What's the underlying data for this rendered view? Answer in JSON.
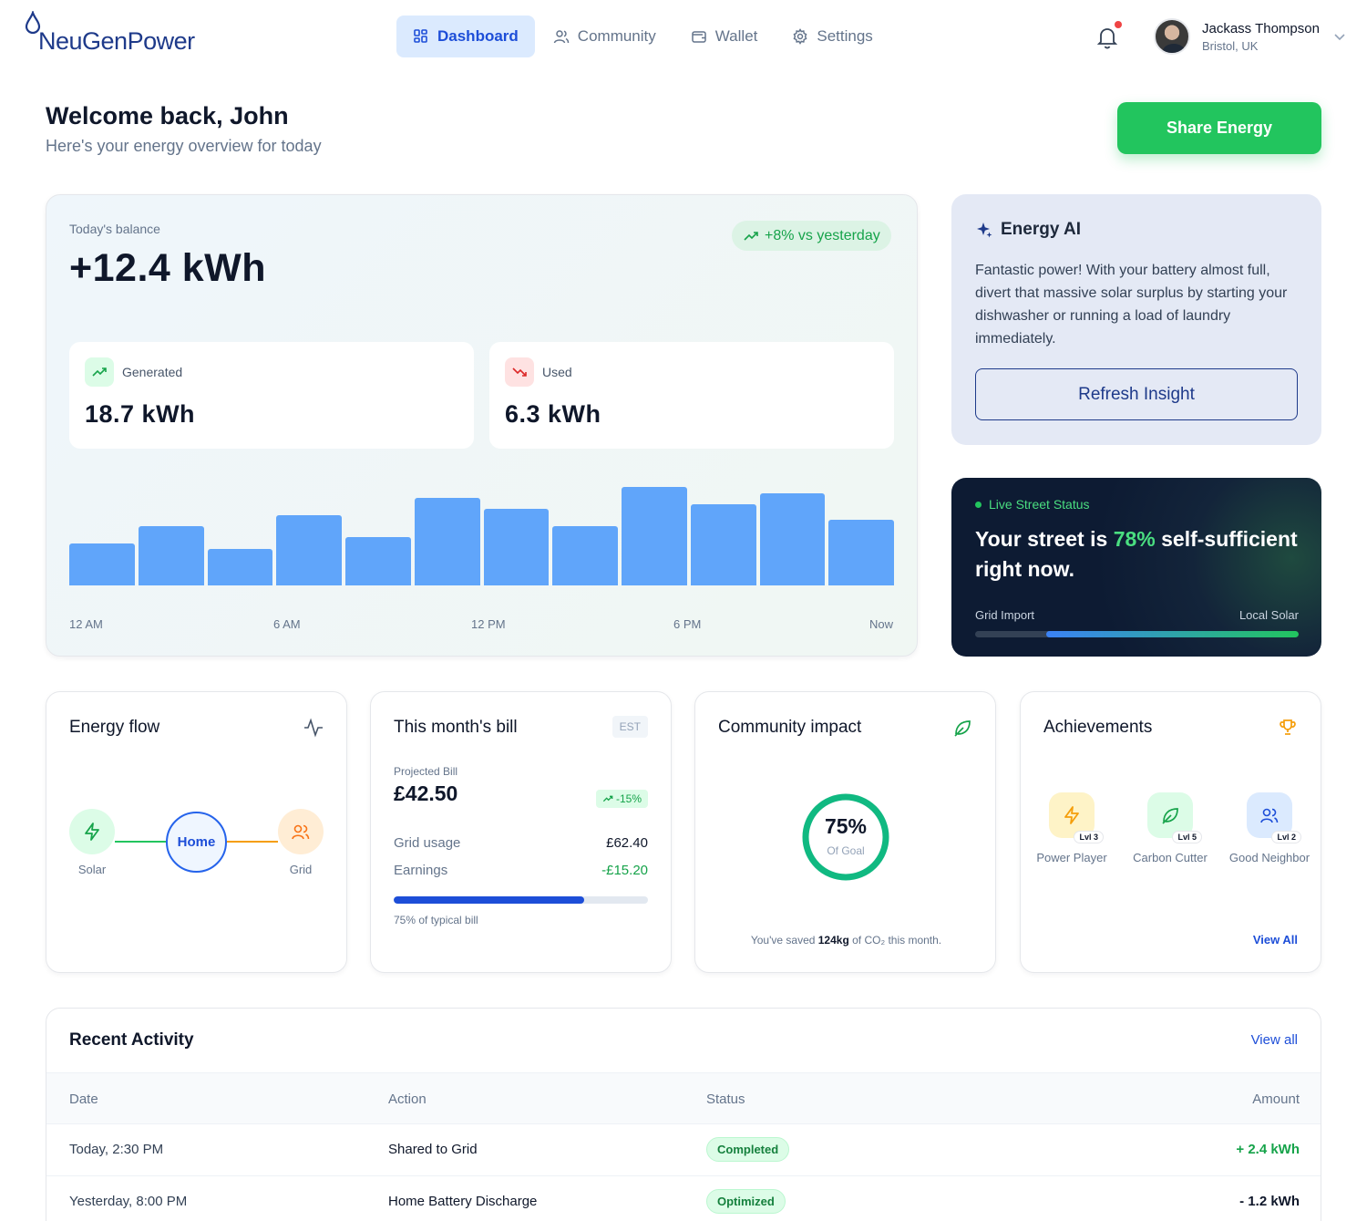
{
  "brand": {
    "name": "NeuGenPower"
  },
  "nav": {
    "items": [
      {
        "label": "Dashboard",
        "icon": "grid-icon",
        "active": true
      },
      {
        "label": "Community",
        "icon": "users-icon",
        "active": false
      },
      {
        "label": "Wallet",
        "icon": "wallet-icon",
        "active": false
      },
      {
        "label": "Settings",
        "icon": "gear-icon",
        "active": false
      }
    ]
  },
  "user": {
    "name": "Jackass Thompson",
    "location": "Bristol, UK",
    "has_notifications": true
  },
  "welcome": {
    "title": "Welcome back, John",
    "subtitle": "Here's your energy overview for today",
    "share_button": "Share Energy"
  },
  "balance": {
    "label": "Today's balance",
    "value": "+12.4 kWh",
    "trend": "+8% vs yesterday",
    "generated_label": "Generated",
    "generated_value": "18.7 kWh",
    "used_label": "Used",
    "used_value": "6.3 kWh"
  },
  "chart_data": {
    "type": "bar",
    "values": [
      0.42,
      0.6,
      0.37,
      0.71,
      0.49,
      0.88,
      0.77,
      0.6,
      0.99,
      0.82,
      0.93,
      0.66
    ],
    "x_tick_labels": [
      "12 AM",
      "6 AM",
      "12 PM",
      "6 PM",
      "Now"
    ],
    "xlabel": "",
    "ylabel": "",
    "grid": false
  },
  "ai": {
    "title": "Energy AI",
    "message": "Fantastic power! With your battery almost full, divert that massive solar surplus by starting your dishwasher or running a load of laundry immediately.",
    "refresh_button": "Refresh Insight"
  },
  "street": {
    "tag": "Live Street Status",
    "msg_pre": "Your street is ",
    "msg_pct": "78%",
    "msg_post": " self-sufficient right now.",
    "left_label": "Grid Import",
    "right_label": "Local Solar",
    "local_fraction": 0.78
  },
  "energy_flow": {
    "title": "Energy flow",
    "solar_label": "Solar",
    "home_label": "Home",
    "grid_label": "Grid"
  },
  "bill": {
    "title": "This month's bill",
    "badge": "EST",
    "projected_label": "Projected Bill",
    "projected_value": "£42.50",
    "delta": "-15%",
    "grid_usage_label": "Grid usage",
    "grid_usage_value": "£62.40",
    "earnings_label": "Earnings",
    "earnings_value": "-£15.20",
    "typical_fraction": 0.75,
    "typical_note": "75% of typical bill"
  },
  "impact": {
    "title": "Community impact",
    "goal_pct": "75%",
    "goal_label": "Of Goal",
    "goal_fraction": 0.75,
    "note_pre": "You've saved ",
    "note_amount": "124kg",
    "note_post": " of CO₂ this month."
  },
  "achievements": {
    "title": "Achievements",
    "items": [
      {
        "name": "Power Player",
        "level": "Lvl 3",
        "icon": "bolt-icon",
        "color": "#fef3c7"
      },
      {
        "name": "Carbon Cutter",
        "level": "Lvl 5",
        "icon": "leaf-icon",
        "color": "#dcfce7"
      },
      {
        "name": "Good Neighbor",
        "level": "Lvl 2",
        "icon": "users-icon",
        "color": "#dbeafe"
      }
    ],
    "view_all": "View All"
  },
  "activity": {
    "title": "Recent Activity",
    "view_all": "View all",
    "columns": [
      "Date",
      "Action",
      "Status",
      "Amount"
    ],
    "rows": [
      {
        "date": "Today, 2:30 PM",
        "action": "Shared to Grid",
        "status": "Completed",
        "amount": "+ 2.4 kWh"
      },
      {
        "date": "Yesterday, 8:00 PM",
        "action": "Home Battery Discharge",
        "status": "Optimized",
        "amount": "- 1.2 kWh"
      }
    ]
  },
  "colors": {
    "primary": "#1d4ed8",
    "success": "#22c55e",
    "bar": "#60a5fa",
    "negative": "#0f172a",
    "positive": "#16a34a"
  }
}
